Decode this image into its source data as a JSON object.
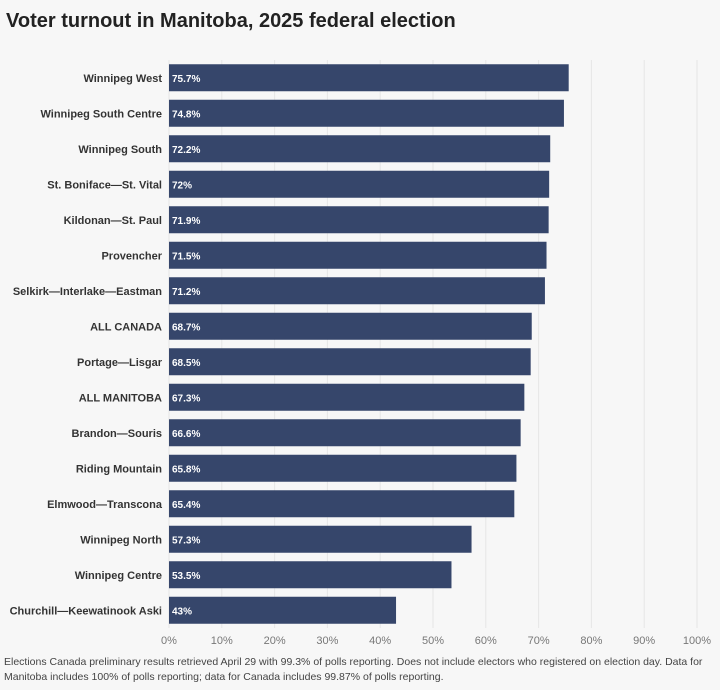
{
  "chart_data": {
    "type": "bar",
    "orientation": "horizontal",
    "title": "Voter turnout in Manitoba, 2025 federal election",
    "categories": [
      "Winnipeg West",
      "Winnipeg South Centre",
      "Winnipeg South",
      "St. Boniface—St. Vital",
      "Kildonan—St. Paul",
      "Provencher",
      "Selkirk—Interlake—Eastman",
      "ALL CANADA",
      "Portage—Lisgar",
      "ALL MANITOBA",
      "Brandon—Souris",
      "Riding Mountain",
      "Elmwood—Transcona",
      "Winnipeg North",
      "Winnipeg Centre",
      "Churchill—Keewatinook Aski"
    ],
    "values": [
      75.7,
      74.8,
      72.2,
      72,
      71.9,
      71.5,
      71.2,
      68.7,
      68.5,
      67.3,
      66.6,
      65.8,
      65.4,
      57.3,
      53.5,
      43
    ],
    "data_labels": [
      "75.7%",
      "74.8%",
      "72.2%",
      "72%",
      "71.9%",
      "71.5%",
      "71.2%",
      "68.7%",
      "68.5%",
      "67.3%",
      "66.6%",
      "65.8%",
      "65.4%",
      "57.3%",
      "53.5%",
      "43%"
    ],
    "xlim": [
      0,
      100
    ],
    "xticks": [
      "0%",
      "10%",
      "20%",
      "30%",
      "40%",
      "50%",
      "60%",
      "70%",
      "80%",
      "90%",
      "100%"
    ],
    "xlabel": "",
    "ylabel": "",
    "grid": true,
    "bar_color": "#36466b",
    "note": "Elections Canada preliminary results retrieved April 29 with 99.3% of polls reporting. Does not include electors who registered on election day. Data for Manitoba includes 100% of polls reporting; data for Canada includes 99.87% of polls reporting."
  }
}
